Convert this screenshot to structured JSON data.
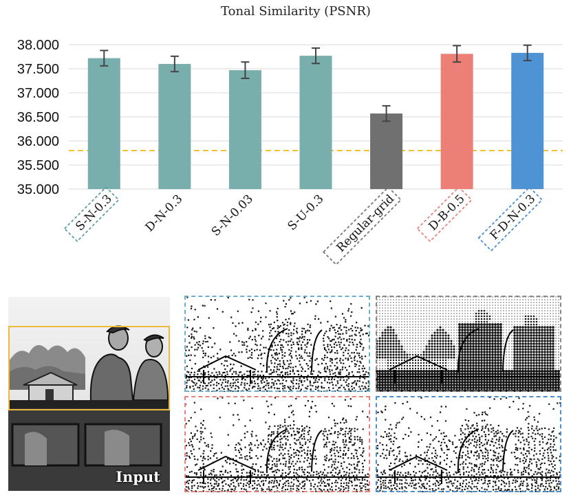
{
  "chart_data": {
    "type": "bar",
    "title": "Tonal Similarity (PSNR)",
    "xlabel": "",
    "ylabel": "",
    "ylim": [
      35.0,
      38.0
    ],
    "y_ticks": [
      "35.000",
      "35.500",
      "36.000",
      "36.500",
      "37.000",
      "37.500",
      "38.000"
    ],
    "categories": [
      "S-N-0.3",
      "D-N-0.3",
      "S-N-0.03",
      "S-U-0.3",
      "Regular-grid",
      "D-B-0.5",
      "F-D-N-0.3"
    ],
    "values": [
      37.72,
      37.6,
      37.47,
      37.77,
      36.57,
      37.81,
      37.83
    ],
    "error": [
      0.16,
      0.16,
      0.17,
      0.16,
      0.16,
      0.17,
      0.16
    ],
    "bar_colors": [
      "#78aeab",
      "#78aeab",
      "#78aeab",
      "#78aeab",
      "#707070",
      "#ec8076",
      "#4e94d4"
    ],
    "label_box_colors": [
      "#5f9ea0",
      null,
      null,
      null,
      "#777777",
      "#e8837a",
      "#4a8fd0"
    ],
    "reference_line": {
      "value": 35.8,
      "color": "#f2c12e",
      "style": "dashed"
    }
  },
  "figure": {
    "input_label": "Input",
    "input_frame_color": "#f0b93a",
    "panels": [
      {
        "id": "regular-grid-result",
        "border_color": "#888888"
      },
      {
        "id": "s-n-result",
        "border_color": "#6aaecb"
      },
      {
        "id": "d-b-result",
        "border_color": "#e8837a"
      },
      {
        "id": "f-d-n-result",
        "border_color": "#4a8fd0"
      }
    ]
  }
}
